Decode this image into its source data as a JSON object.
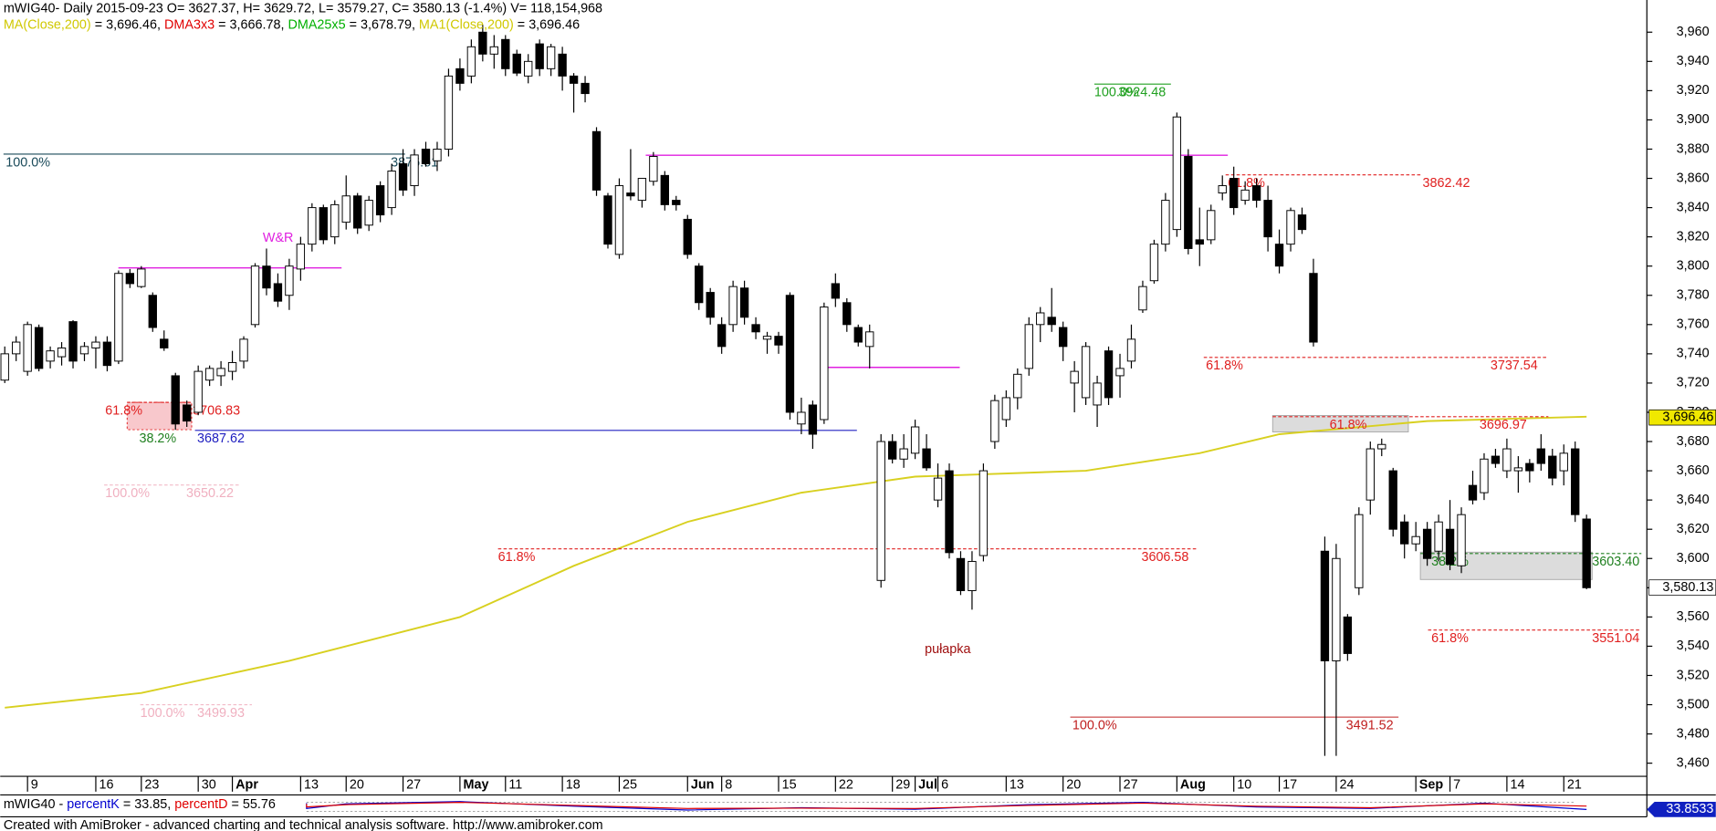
{
  "header": {
    "line1": "mWIG40- Daily 2015-09-23 O= 3627.37, H= 3629.72, L= 3579.27, C= 3580.13 (-1.4%) V= 118,154,968",
    "line2": [
      {
        "text": "MA(Close,200)",
        "color": "#d0c800"
      },
      {
        "text": " = 3,696.46, ",
        "color": "#000000"
      },
      {
        "text": "DMA3x3",
        "color": "#e00000"
      },
      {
        "text": " = 3,666.78, ",
        "color": "#000000"
      },
      {
        "text": "DMA25x5",
        "color": "#00b000"
      },
      {
        "text": " = 3,678.79, ",
        "color": "#000000"
      },
      {
        "text": "MA1(Close,200)",
        "color": "#d0c800"
      },
      {
        "text": " = 3,696.46",
        "color": "#000000"
      }
    ]
  },
  "chart_data": {
    "type": "candlestick",
    "xlim": [
      -0.4,
      144.3
    ],
    "ylim": [
      3451,
      3982
    ],
    "xticks": [
      {
        "value": 2,
        "label": "9"
      },
      {
        "value": 8,
        "label": "16"
      },
      {
        "value": 12,
        "label": "23"
      },
      {
        "value": 17,
        "label": "30"
      },
      {
        "value": 20,
        "label": "Apr"
      },
      {
        "value": 26,
        "label": "13"
      },
      {
        "value": 30,
        "label": "20"
      },
      {
        "value": 35,
        "label": "27"
      },
      {
        "value": 40,
        "label": "May"
      },
      {
        "value": 44,
        "label": "11"
      },
      {
        "value": 49,
        "label": "18"
      },
      {
        "value": 54,
        "label": "25"
      },
      {
        "value": 60,
        "label": "Jun"
      },
      {
        "value": 63,
        "label": "8"
      },
      {
        "value": 68,
        "label": "15"
      },
      {
        "value": 73,
        "label": "22"
      },
      {
        "value": 78,
        "label": "29"
      },
      {
        "value": 80,
        "label": "Jul"
      },
      {
        "value": 82,
        "label": "6"
      },
      {
        "value": 88,
        "label": "13"
      },
      {
        "value": 93,
        "label": "20"
      },
      {
        "value": 98,
        "label": "27"
      },
      {
        "value": 103,
        "label": "Aug"
      },
      {
        "value": 108,
        "label": "10"
      },
      {
        "value": 112,
        "label": "17"
      },
      {
        "value": 117,
        "label": "24"
      },
      {
        "value": 124,
        "label": "Sep"
      },
      {
        "value": 127,
        "label": "7"
      },
      {
        "value": 132,
        "label": "14"
      },
      {
        "value": 137,
        "label": "21"
      }
    ],
    "yticks": [
      {
        "value": 3460,
        "label": "3,460"
      },
      {
        "value": 3480,
        "label": "3,480"
      },
      {
        "value": 3500,
        "label": "3,500"
      },
      {
        "value": 3520,
        "label": "3,520"
      },
      {
        "value": 3540,
        "label": "3,540"
      },
      {
        "value": 3560,
        "label": "3,560"
      },
      {
        "value": 3580,
        "label": "3,580"
      },
      {
        "value": 3600,
        "label": "3,600"
      },
      {
        "value": 3620,
        "label": "3,620"
      },
      {
        "value": 3640,
        "label": "3,640"
      },
      {
        "value": 3660,
        "label": "3,660"
      },
      {
        "value": 3680,
        "label": "3,680"
      },
      {
        "value": 3700,
        "label": "3,700"
      },
      {
        "value": 3720,
        "label": "3,720"
      },
      {
        "value": 3740,
        "label": "3,740"
      },
      {
        "value": 3760,
        "label": "3,760"
      },
      {
        "value": 3780,
        "label": "3,780"
      },
      {
        "value": 3800,
        "label": "3,800"
      },
      {
        "value": 3820,
        "label": "3,820"
      },
      {
        "value": 3840,
        "label": "3,840"
      },
      {
        "value": 3860,
        "label": "3,860"
      },
      {
        "value": 3880,
        "label": "3,880"
      },
      {
        "value": 3900,
        "label": "3,900"
      },
      {
        "value": 3920,
        "label": "3,920"
      },
      {
        "value": 3940,
        "label": "3,940"
      },
      {
        "value": 3960,
        "label": "3,960"
      }
    ],
    "bull_color": "#ffffff",
    "bear_color": "#000000",
    "ohlc": [
      [
        3722,
        3745,
        3720,
        3740
      ],
      [
        3740,
        3752,
        3735,
        3748
      ],
      [
        3728,
        3762,
        3725,
        3760
      ],
      [
        3758,
        3760,
        3728,
        3730
      ],
      [
        3735,
        3745,
        3730,
        3742
      ],
      [
        3738,
        3748,
        3732,
        3744
      ],
      [
        3762,
        3763,
        3730,
        3735
      ],
      [
        3740,
        3748,
        3735,
        3745
      ],
      [
        3744,
        3752,
        3730,
        3748
      ],
      [
        3748,
        3752,
        3728,
        3732
      ],
      [
        3735,
        3797,
        3733,
        3795
      ],
      [
        3795,
        3798,
        3785,
        3788
      ],
      [
        3786,
        3800,
        3785,
        3798
      ],
      [
        3780,
        3782,
        3755,
        3758
      ],
      [
        3750,
        3756,
        3742,
        3744
      ],
      [
        3725,
        3727,
        3688,
        3692
      ],
      [
        3705,
        3708,
        3690,
        3694
      ],
      [
        3700,
        3732,
        3698,
        3728
      ],
      [
        3722,
        3732,
        3718,
        3730
      ],
      [
        3725,
        3735,
        3718,
        3730
      ],
      [
        3728,
        3742,
        3722,
        3734
      ],
      [
        3735,
        3752,
        3730,
        3750
      ],
      [
        3760,
        3802,
        3758,
        3800
      ],
      [
        3800,
        3812,
        3780,
        3785
      ],
      [
        3788,
        3795,
        3772,
        3776
      ],
      [
        3780,
        3805,
        3770,
        3800
      ],
      [
        3798,
        3820,
        3790,
        3815
      ],
      [
        3815,
        3843,
        3810,
        3840
      ],
      [
        3840,
        3842,
        3815,
        3818
      ],
      [
        3820,
        3845,
        3815,
        3842
      ],
      [
        3830,
        3862,
        3825,
        3848
      ],
      [
        3848,
        3850,
        3822,
        3826
      ],
      [
        3828,
        3848,
        3824,
        3845
      ],
      [
        3855,
        3858,
        3830,
        3835
      ],
      [
        3840,
        3870,
        3835,
        3865
      ],
      [
        3870,
        3880,
        3848,
        3852
      ],
      [
        3855,
        3880,
        3848,
        3876
      ],
      [
        3880,
        3885,
        3868,
        3870
      ],
      [
        3872,
        3885,
        3865,
        3880
      ],
      [
        3880,
        3935,
        3875,
        3930
      ],
      [
        3935,
        3942,
        3920,
        3925
      ],
      [
        3930,
        3955,
        3925,
        3950
      ],
      [
        3960,
        3965,
        3940,
        3945
      ],
      [
        3945,
        3958,
        3935,
        3950
      ],
      [
        3955,
        3958,
        3930,
        3935
      ],
      [
        3945,
        3948,
        3930,
        3932
      ],
      [
        3930,
        3945,
        3925,
        3940
      ],
      [
        3952,
        3955,
        3930,
        3935
      ],
      [
        3935,
        3952,
        3930,
        3950
      ],
      [
        3945,
        3950,
        3920,
        3930
      ],
      [
        3930,
        3932,
        3905,
        3925
      ],
      [
        3925,
        3930,
        3912,
        3918
      ],
      [
        3892,
        3895,
        3848,
        3852
      ],
      [
        3848,
        3850,
        3812,
        3815
      ],
      [
        3808,
        3860,
        3805,
        3855
      ],
      [
        3850,
        3880,
        3845,
        3848
      ],
      [
        3845,
        3860,
        3840,
        3860
      ],
      [
        3858,
        3878,
        3855,
        3875
      ],
      [
        3862,
        3865,
        3838,
        3842
      ],
      [
        3845,
        3848,
        3838,
        3842
      ],
      [
        3832,
        3835,
        3805,
        3808
      ],
      [
        3800,
        3802,
        3770,
        3775
      ],
      [
        3782,
        3785,
        3760,
        3765
      ],
      [
        3760,
        3765,
        3740,
        3745
      ],
      [
        3760,
        3790,
        3755,
        3786
      ],
      [
        3785,
        3790,
        3760,
        3765
      ],
      [
        3760,
        3765,
        3750,
        3755
      ],
      [
        3750,
        3755,
        3740,
        3752
      ],
      [
        3752,
        3755,
        3740,
        3746
      ],
      [
        3780,
        3782,
        3695,
        3700
      ],
      [
        3692,
        3710,
        3685,
        3700
      ],
      [
        3705,
        3708,
        3675,
        3685
      ],
      [
        3695,
        3775,
        3692,
        3772
      ],
      [
        3788,
        3795,
        3772,
        3778
      ],
      [
        3775,
        3778,
        3755,
        3760
      ],
      [
        3758,
        3760,
        3745,
        3748
      ],
      [
        3745,
        3760,
        3730,
        3755
      ],
      [
        3585,
        3685,
        3580,
        3680
      ],
      [
        3680,
        3685,
        3665,
        3668
      ],
      [
        3668,
        3685,
        3662,
        3675
      ],
      [
        3672,
        3695,
        3668,
        3690
      ],
      [
        3675,
        3685,
        3660,
        3662
      ],
      [
        3640,
        3665,
        3635,
        3655
      ],
      [
        3660,
        3665,
        3600,
        3604
      ],
      [
        3600,
        3605,
        3575,
        3578
      ],
      [
        3578,
        3605,
        3565,
        3598
      ],
      [
        3602,
        3665,
        3598,
        3660
      ],
      [
        3680,
        3712,
        3675,
        3708
      ],
      [
        3695,
        3715,
        3690,
        3710
      ],
      [
        3710,
        3730,
        3702,
        3726
      ],
      [
        3730,
        3765,
        3725,
        3760
      ],
      [
        3760,
        3772,
        3748,
        3768
      ],
      [
        3765,
        3785,
        3755,
        3760
      ],
      [
        3758,
        3762,
        3735,
        3745
      ],
      [
        3720,
        3735,
        3700,
        3728
      ],
      [
        3710,
        3748,
        3705,
        3745
      ],
      [
        3705,
        3725,
        3690,
        3720
      ],
      [
        3742,
        3745,
        3705,
        3710
      ],
      [
        3725,
        3740,
        3710,
        3730
      ],
      [
        3735,
        3760,
        3730,
        3750
      ],
      [
        3770,
        3790,
        3768,
        3786
      ],
      [
        3790,
        3818,
        3788,
        3815
      ],
      [
        3815,
        3850,
        3810,
        3845
      ],
      [
        3825,
        3905,
        3820,
        3902
      ],
      [
        3875,
        3880,
        3808,
        3812
      ],
      [
        3818,
        3840,
        3800,
        3815
      ],
      [
        3818,
        3842,
        3815,
        3838
      ],
      [
        3850,
        3862,
        3845,
        3855
      ],
      [
        3860,
        3868,
        3835,
        3840
      ],
      [
        3845,
        3858,
        3842,
        3852
      ],
      [
        3855,
        3860,
        3840,
        3845
      ],
      [
        3845,
        3855,
        3810,
        3820
      ],
      [
        3815,
        3825,
        3795,
        3800
      ],
      [
        3815,
        3840,
        3810,
        3838
      ],
      [
        3835,
        3840,
        3822,
        3825
      ],
      [
        3795,
        3805,
        3745,
        3748
      ],
      [
        3605,
        3615,
        3465,
        3530
      ],
      [
        3530,
        3610,
        3465,
        3600
      ],
      [
        3560,
        3562,
        3530,
        3535
      ],
      [
        3580,
        3635,
        3575,
        3630
      ],
      [
        3640,
        3680,
        3630,
        3675
      ],
      [
        3675,
        3682,
        3670,
        3678
      ],
      [
        3660,
        3662,
        3615,
        3620
      ],
      [
        3625,
        3630,
        3600,
        3610
      ],
      [
        3610,
        3625,
        3605,
        3615
      ],
      [
        3620,
        3625,
        3595,
        3600
      ],
      [
        3605,
        3630,
        3598,
        3625
      ],
      [
        3620,
        3640,
        3592,
        3596
      ],
      [
        3595,
        3635,
        3590,
        3630
      ],
      [
        3650,
        3660,
        3637,
        3640
      ],
      [
        3645,
        3672,
        3640,
        3668
      ],
      [
        3670,
        3675,
        3662,
        3665
      ],
      [
        3660,
        3682,
        3655,
        3675
      ],
      [
        3660,
        3670,
        3645,
        3662
      ],
      [
        3665,
        3668,
        3652,
        3660
      ],
      [
        3675,
        3685,
        3660,
        3665
      ],
      [
        3670,
        3675,
        3650,
        3655
      ],
      [
        3660,
        3678,
        3650,
        3672
      ],
      [
        3675,
        3680,
        3625,
        3630
      ],
      [
        3627,
        3630,
        3579,
        3580
      ]
    ],
    "overlays": [
      {
        "name": "MA(Close,200)",
        "color": "#d8d020",
        "x": [
          0,
          12,
          25,
          40,
          50,
          60,
          70,
          80,
          95,
          105,
          112,
          125,
          139
        ],
        "values": [
          3498,
          3508,
          3530,
          3560,
          3595,
          3625,
          3645,
          3656,
          3660,
          3672,
          3685,
          3694,
          3697
        ]
      }
    ],
    "last_labels": [
      {
        "value": 3696.46,
        "label": "3,696.46",
        "color": "#f0e800"
      },
      {
        "value": 3580.13,
        "label": "3,580.13",
        "color": "#ffffff"
      }
    ],
    "levels": [
      {
        "pct": "100.0%",
        "price": 3876.61,
        "color": "#1a4a5a",
        "pct_color": "#1a4a5a"
      },
      {
        "pct": "61.8%",
        "price": 3706.83,
        "color": "#e02020",
        "pct_color": "#e02020"
      },
      {
        "pct": "38.2%",
        "price": 3687.62,
        "color": "#2020c0",
        "pct_color": "#208020"
      },
      {
        "pct": "100.0%",
        "price": 3650.22,
        "color": "#f0b0c0",
        "pct_color": "#f0b0c0"
      },
      {
        "pct": "100.0%",
        "price": 3499.93,
        "color": "#f0b0c0",
        "pct_color": "#f0b0c0"
      },
      {
        "pct": "61.8%",
        "price": 3606.58,
        "color": "#e02020",
        "pct_color": "#e02020"
      },
      {
        "pct": "100.0%",
        "price": 3924.48,
        "color": "#20a020",
        "pct_color": "#20a020"
      },
      {
        "pct": "61.8%",
        "price": 3862.42,
        "color": "#e02020",
        "pct_color": "#e02020"
      },
      {
        "pct": "61.8%",
        "price": 3737.54,
        "color": "#e02020",
        "pct_color": "#e02020"
      },
      {
        "pct": "61.8%",
        "price": 3696.97,
        "color": "#e02020",
        "pct_color": "#e02020"
      },
      {
        "pct": "38.2%",
        "price": {
          "value": 3603.4,
          "label": "3603.40"
        },
        "color": "#208020",
        "pct_color": "#208020"
      },
      {
        "pct": "61.8%",
        "price": 3551.04,
        "color": "#e02020",
        "pct_color": "#e02020"
      },
      {
        "pct": "100.0%",
        "price": 3491.52,
        "color": "#c02020",
        "pct_color": "#c02020"
      }
    ],
    "annotations": [
      {
        "text": "W&R",
        "color": "#e020e0"
      },
      {
        "text": "pułapka",
        "color": "#a01010"
      }
    ]
  },
  "indicator": {
    "title": [
      {
        "text": "mWIG40 - ",
        "color": "#000000"
      },
      {
        "text": "percentK",
        "color": "#0000d0"
      },
      {
        "text": " = 33.85, ",
        "color": "#000000"
      },
      {
        "text": "percentD",
        "color": "#e00000"
      },
      {
        "text": " = 55.76",
        "color": "#000000"
      }
    ],
    "ylim": [
      0,
      100
    ],
    "x": [
      0,
      10,
      20,
      30,
      40,
      50,
      60,
      70,
      80,
      90,
      100,
      110,
      120,
      130,
      139
    ],
    "series": [
      {
        "name": "percentK",
        "color": "#0000d0",
        "values": [
          60,
          75,
          40,
          70,
          85,
          55,
          30,
          45,
          35,
          65,
          80,
          50,
          40,
          75,
          33.85
        ]
      },
      {
        "name": "percentD",
        "color": "#e00000",
        "values": [
          55,
          70,
          50,
          65,
          80,
          60,
          40,
          42,
          40,
          60,
          75,
          55,
          45,
          70,
          55.76
        ]
      }
    ],
    "last": {
      "value": 33.8533,
      "label": "33.8533"
    }
  },
  "footer": "Created with AmiBroker - advanced charting and technical analysis software. http://www.amibroker.com"
}
